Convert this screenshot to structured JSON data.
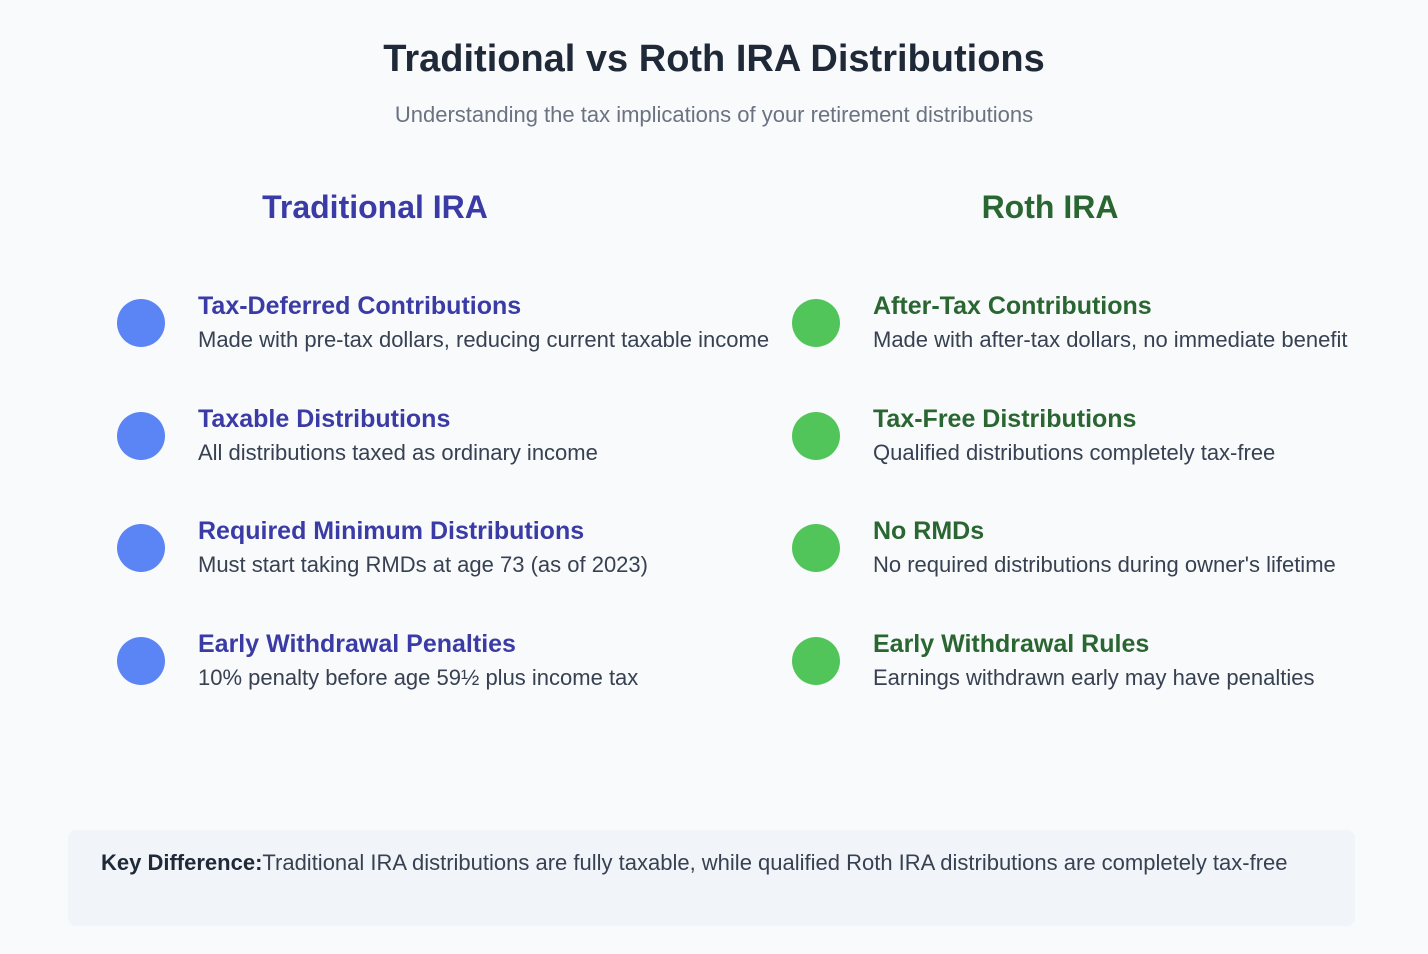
{
  "header": {
    "title": "Traditional vs Roth IRA Distributions",
    "subtitle": "Understanding the tax implications of your retirement distributions"
  },
  "columns": [
    {
      "heading": "Traditional IRA",
      "items": [
        {
          "title": "Tax-Deferred Contributions",
          "description": "Made with pre-tax dollars, reducing current taxable income"
        },
        {
          "title": "Taxable Distributions",
          "description": "All distributions taxed as ordinary income"
        },
        {
          "title": "Required Minimum Distributions",
          "description": "Must start taking RMDs at age 73 (as of 2023)"
        },
        {
          "title": "Early Withdrawal Penalties",
          "description": "10% penalty before age 59½ plus income tax"
        }
      ]
    },
    {
      "heading": "Roth IRA",
      "items": [
        {
          "title": "After-Tax Contributions",
          "description": "Made with after-tax dollars, no immediate benefit"
        },
        {
          "title": "Tax-Free Distributions",
          "description": "Qualified distributions completely tax-free"
        },
        {
          "title": "No RMDs",
          "description": "No required distributions during owner's lifetime"
        },
        {
          "title": "Early Withdrawal Rules",
          "description": "Earnings withdrawn early may have penalties"
        }
      ]
    }
  ],
  "key": {
    "label": "Key Difference:",
    "text": "Traditional IRA distributions are fully taxable, while qualified Roth IRA distributions are completely tax-free"
  }
}
